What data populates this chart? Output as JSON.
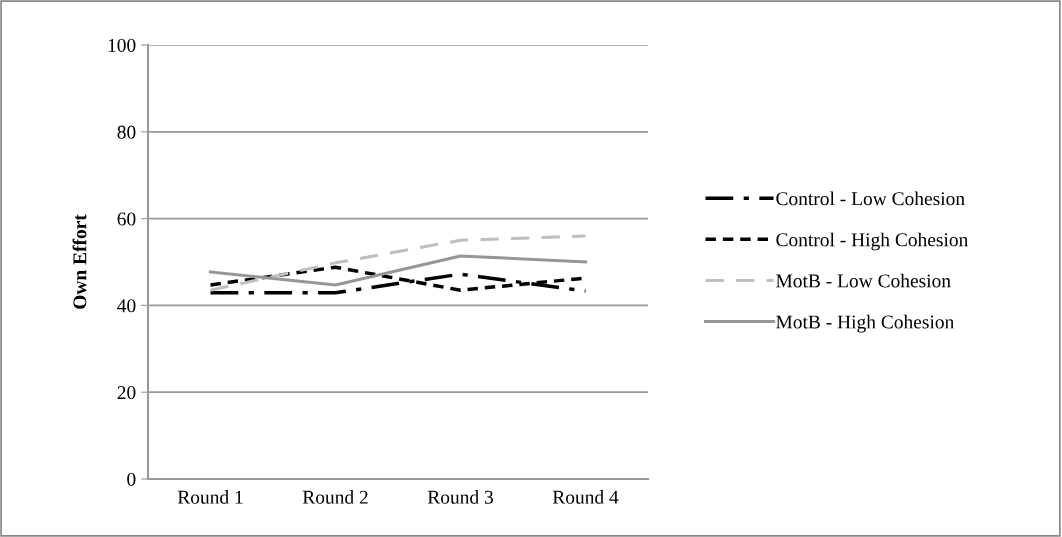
{
  "chart_data": {
    "type": "line",
    "ylabel": "Own Effort",
    "categories": [
      "Round 1",
      "Round 2",
      "Round 3",
      "Round 4"
    ],
    "series": [
      {
        "name": "Control - Low Cohesion",
        "color": "#000000",
        "line_style": "dashdot",
        "values": [
          42.9,
          42.9,
          47.2,
          43.3
        ]
      },
      {
        "name": "Control - High Cohesion",
        "color": "#000000",
        "line_style": "dotted",
        "values": [
          44.7,
          48.8,
          43.5,
          46.3
        ]
      },
      {
        "name": "MotB - Low Cohesion",
        "color": "#bfbfbf",
        "line_style": "dashed",
        "values": [
          43.5,
          49.8,
          55,
          56
        ]
      },
      {
        "name": "MotB - High Cohesion",
        "color": "#969696",
        "line_style": "solid",
        "values": [
          47.7,
          44.7,
          51.4,
          50
        ]
      }
    ],
    "ylim": [
      0,
      100
    ],
    "yticks": [
      0,
      20,
      40,
      60,
      80,
      100
    ],
    "grid": "y",
    "legend": "right",
    "marker": "none"
  }
}
